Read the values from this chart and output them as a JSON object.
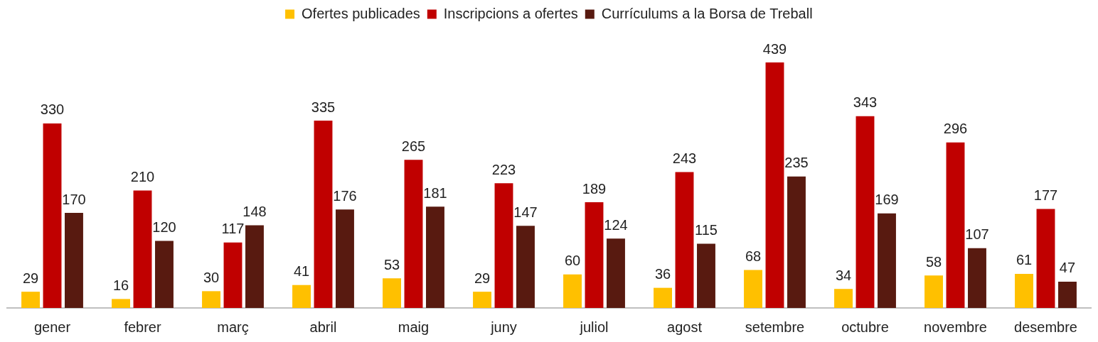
{
  "chart_data": {
    "type": "bar",
    "categories": [
      "gener",
      "febrer",
      "març",
      "abril",
      "maig",
      "juny",
      "juliol",
      "agost",
      "setembre",
      "octubre",
      "novembre",
      "desembre"
    ],
    "series": [
      {
        "name": "Ofertes publicades",
        "color": "#ffc000",
        "values": [
          29,
          16,
          30,
          41,
          53,
          29,
          60,
          36,
          68,
          34,
          58,
          61
        ]
      },
      {
        "name": "Inscripcions a ofertes",
        "color": "#c00000",
        "values": [
          330,
          210,
          117,
          335,
          265,
          223,
          189,
          243,
          439,
          343,
          296,
          177
        ]
      },
      {
        "name": "Currículums a la Borsa de Treball",
        "color": "#581a10",
        "values": [
          170,
          120,
          148,
          176,
          181,
          147,
          124,
          115,
          235,
          169,
          107,
          47
        ]
      }
    ],
    "data_labels": true,
    "legend": "top"
  }
}
